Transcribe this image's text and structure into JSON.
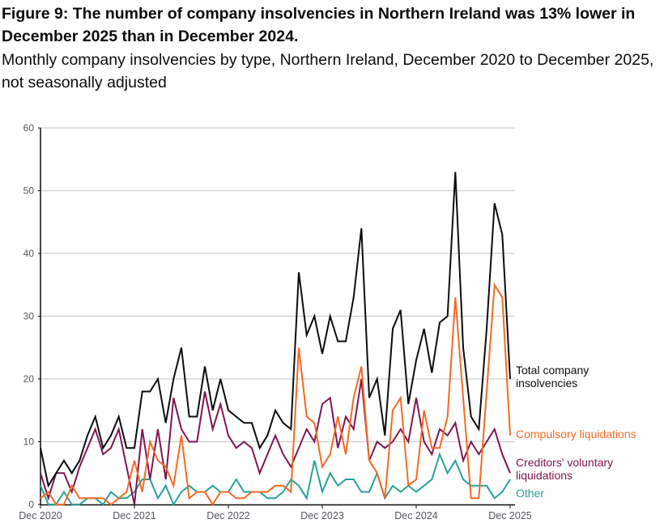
{
  "chart_data": {
    "type": "line",
    "title": "Figure 9: The number of company insolvencies in Northern Ireland was 13% lower in December 2025 than in December 2024.",
    "subtitle": "Monthly company insolvencies by type, Northern Ireland, December 2020 to December 2025, not seasonally adjusted",
    "xlabel": "",
    "ylabel": "",
    "x_start": "Dec 2020",
    "x_end": "Dec 2025",
    "x_tick_labels": [
      "Dec 2020",
      "Dec 2021",
      "Dec 2022",
      "Dec 2023",
      "Dec 2024",
      "Dec 2025"
    ],
    "y_ticks": [
      0,
      10,
      20,
      30,
      40,
      50,
      60
    ],
    "ylim": [
      0,
      60
    ],
    "grid": "horizontal",
    "legend": "inline labels at right end of lines",
    "series": [
      {
        "name": "Total company insolvencies",
        "color": "#0b0c0c",
        "values": [
          9,
          3,
          5,
          7,
          5,
          7,
          11,
          14,
          9,
          11,
          14,
          9,
          9,
          18,
          18,
          20,
          13,
          20,
          25,
          14,
          14,
          22,
          15,
          20,
          15,
          14,
          13,
          13,
          9,
          11,
          15,
          13,
          12,
          37,
          27,
          30,
          24,
          30,
          26,
          26,
          33,
          44,
          17,
          20,
          11,
          28,
          31,
          16,
          23,
          28,
          21,
          29,
          30,
          53,
          25,
          14,
          12,
          28,
          48,
          43,
          20
        ]
      },
      {
        "name": "Compulsory liquidations",
        "color": "#f46a25",
        "values": [
          1,
          2,
          0,
          0,
          3,
          1,
          1,
          1,
          1,
          0,
          1,
          2,
          7,
          2,
          10,
          7,
          6,
          3,
          11,
          1,
          2,
          2,
          0,
          2,
          2,
          1,
          1,
          2,
          2,
          2,
          3,
          3,
          2,
          25,
          14,
          13,
          6,
          8,
          14,
          8,
          17,
          22,
          7,
          5,
          1,
          15,
          17,
          3,
          4,
          15,
          9,
          9,
          14,
          33,
          17,
          1,
          1,
          18,
          35,
          33,
          11
        ]
      },
      {
        "name": "Creditors' voluntary liquidations",
        "color": "#801650",
        "values": [
          5,
          1,
          5,
          5,
          2,
          6,
          9,
          12,
          8,
          9,
          12,
          6,
          0,
          12,
          4,
          12,
          4,
          17,
          12,
          10,
          10,
          18,
          12,
          16,
          11,
          9,
          10,
          9,
          5,
          8,
          11,
          8,
          6,
          9,
          12,
          10,
          16,
          17,
          9,
          14,
          12,
          20,
          7,
          10,
          9,
          10,
          12,
          10,
          17,
          10,
          8,
          12,
          11,
          13,
          7,
          10,
          8,
          10,
          12,
          8,
          5
        ]
      },
      {
        "name": "Other",
        "color": "#28a197",
        "values": [
          3,
          0,
          0,
          2,
          0,
          0,
          1,
          1,
          0,
          2,
          1,
          1,
          2,
          4,
          4,
          1,
          3,
          0,
          2,
          3,
          2,
          2,
          3,
          2,
          2,
          4,
          2,
          2,
          2,
          1,
          1,
          2,
          4,
          3,
          1,
          7,
          2,
          5,
          3,
          4,
          4,
          2,
          2,
          5,
          1,
          3,
          2,
          3,
          2,
          3,
          4,
          8,
          5,
          7,
          4,
          3,
          3,
          3,
          1,
          2,
          4
        ]
      }
    ]
  }
}
